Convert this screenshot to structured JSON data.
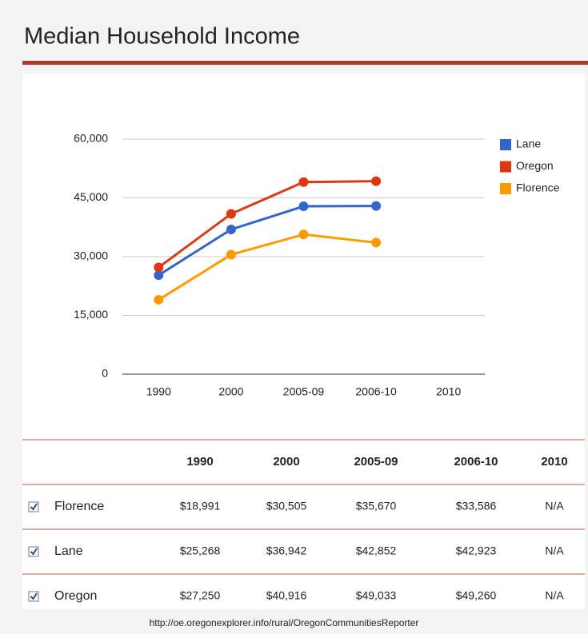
{
  "chart_data": {
    "type": "line",
    "title": "Median Household Income",
    "categories": [
      "1990",
      "2000",
      "2005-09",
      "2006-10",
      "2010"
    ],
    "series": [
      {
        "name": "Lane",
        "color": "#3366cc",
        "values": [
          25268,
          36942,
          42852,
          42923,
          null
        ]
      },
      {
        "name": "Oregon",
        "color": "#dc3912",
        "values": [
          27250,
          40916,
          49033,
          49260,
          null
        ]
      },
      {
        "name": "Florence",
        "color": "#ff9900",
        "values": [
          18991,
          30505,
          35670,
          33586,
          null
        ]
      }
    ],
    "ylim": [
      0,
      60000
    ],
    "yticks": [
      0,
      {
        "value": 15000,
        "label": "15,000"
      },
      {
        "value": 30000,
        "label": "30,000"
      },
      {
        "value": 45000,
        "label": "45,000"
      },
      {
        "value": 60000,
        "label": "60,000"
      }
    ],
    "grid": true,
    "legend": "right"
  },
  "table": {
    "rows": [
      {
        "label": "Florence",
        "cells": [
          "$18,991",
          "$30,505",
          "$35,670",
          "$33,586",
          "N/A"
        ]
      },
      {
        "label": "Lane",
        "cells": [
          "$25,268",
          "$36,942",
          "$42,852",
          "$42,923",
          "N/A"
        ]
      },
      {
        "label": "Oregon",
        "cells": [
          "$27,250",
          "$40,916",
          "$49,033",
          "$49,260",
          "N/A"
        ]
      }
    ]
  },
  "footer": "http://oe.oregonexplorer.info/rural/OregonCommunitiesReporter"
}
